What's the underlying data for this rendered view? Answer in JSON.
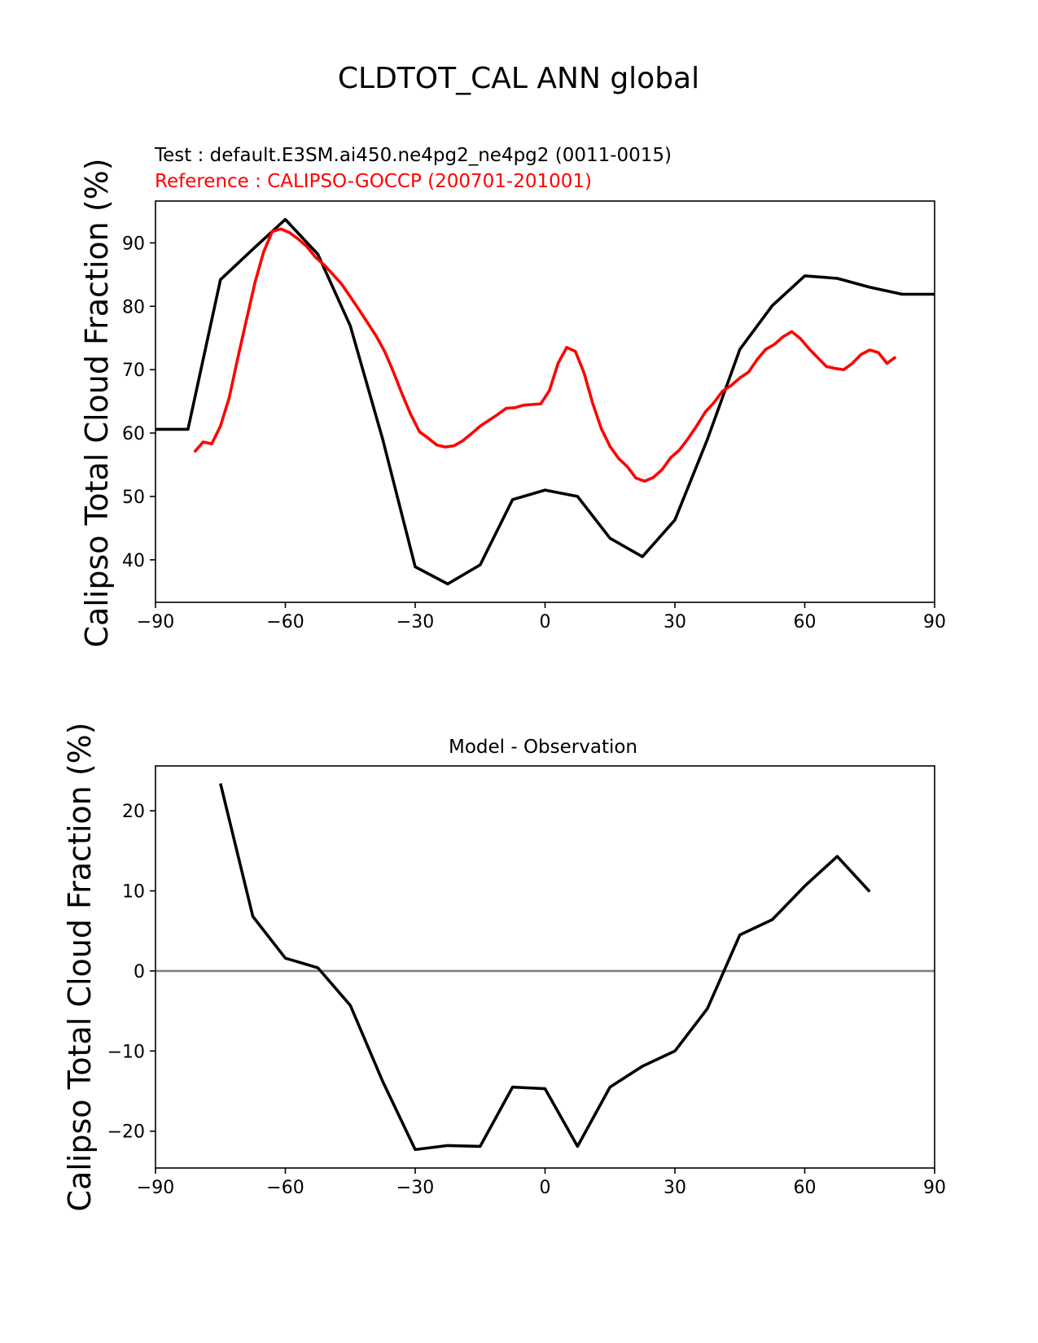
{
  "figure": {
    "title": "CLDTOT_CAL ANN global"
  },
  "colors": {
    "test": "#000000",
    "reference": "#ff0000",
    "zero_line": "#808080"
  },
  "chart_data": [
    {
      "type": "line",
      "test_label": "Test : default.E3SM.ai450.ne4pg2_ne4pg2 (0011-0015)",
      "reference_label": "Reference : CALIPSO-GOCCP (200701-201001)",
      "xlabel": "",
      "ylabel": "Calipso Total Cloud Fraction (%)",
      "xlim": [
        -90,
        90
      ],
      "ylim": [
        33.3,
        96.6
      ],
      "xticks": [
        -90,
        -60,
        -30,
        0,
        30,
        60,
        90
      ],
      "xtick_labels": [
        "−90",
        "−60",
        "−30",
        "0",
        "30",
        "60",
        "90"
      ],
      "yticks": [
        40,
        50,
        60,
        70,
        80,
        90
      ],
      "ytick_labels": [
        "40",
        "50",
        "60",
        "70",
        "80",
        "90"
      ],
      "series": [
        {
          "name": "test",
          "x": [
            -90,
            -82.5,
            -75,
            -67.5,
            -60,
            -52.5,
            -45,
            -37.5,
            -30,
            -22.5,
            -15,
            -7.5,
            0,
            7.5,
            15,
            22.5,
            30,
            37.5,
            45,
            52.5,
            60,
            67.5,
            75,
            82.5,
            90
          ],
          "y": [
            60.6,
            60.6,
            84.2,
            89.0,
            93.7,
            88.2,
            76.9,
            59.0,
            38.9,
            36.2,
            39.2,
            49.5,
            51.0,
            50.0,
            43.4,
            40.5,
            46.3,
            59.0,
            73.2,
            80.1,
            84.8,
            84.4,
            83.0,
            81.9,
            81.9
          ]
        },
        {
          "name": "reference",
          "x": [
            -81,
            -79,
            -77,
            -75,
            -73,
            -71,
            -69,
            -67,
            -65,
            -63,
            -61,
            -59,
            -57,
            -55,
            -53,
            -51,
            -49,
            -47,
            -45,
            -43,
            -41,
            -39,
            -37,
            -35,
            -33,
            -31,
            -29,
            -27,
            -25,
            -23,
            -21,
            -19,
            -17,
            -15,
            -13,
            -11,
            -9,
            -7,
            -5,
            -3,
            -1,
            1,
            3,
            5,
            7,
            9,
            11,
            13,
            15,
            17,
            19,
            21,
            23,
            25,
            27,
            29,
            31,
            33,
            35,
            37,
            39,
            41,
            43,
            45,
            47,
            49,
            51,
            53,
            55,
            57,
            59,
            61,
            63,
            65,
            67,
            69,
            71,
            73,
            75,
            77,
            79,
            81
          ],
          "y": [
            57.0,
            58.6,
            58.3,
            61.1,
            65.5,
            71.8,
            77.8,
            83.8,
            88.6,
            91.8,
            92.2,
            91.6,
            90.6,
            89.4,
            87.7,
            86.5,
            85.0,
            83.5,
            81.5,
            79.5,
            77.4,
            75.3,
            72.8,
            69.6,
            66.1,
            62.9,
            60.2,
            59.2,
            58.1,
            57.8,
            58.0,
            58.8,
            59.9,
            61.1,
            62.0,
            62.9,
            63.9,
            64.0,
            64.4,
            64.5,
            64.6,
            66.7,
            71.0,
            73.5,
            72.9,
            69.5,
            64.7,
            60.7,
            57.9,
            56.0,
            54.7,
            52.9,
            52.4,
            53.0,
            54.2,
            56.1,
            57.3,
            59.1,
            61.1,
            63.3,
            64.8,
            66.6,
            67.5,
            68.7,
            69.6,
            71.6,
            73.2,
            74.0,
            75.2,
            76.0,
            74.9,
            73.3,
            71.9,
            70.5,
            70.2,
            70.0,
            71.0,
            72.4,
            73.1,
            72.7,
            71.0,
            72.0
          ]
        }
      ]
    },
    {
      "type": "line",
      "title": "Model - Observation",
      "xlabel": "",
      "ylabel": "Calipso Total Cloud Fraction (%)",
      "xlim": [
        -90,
        90
      ],
      "ylim": [
        -24.6,
        25.6
      ],
      "xticks": [
        -90,
        -60,
        -30,
        0,
        30,
        60,
        90
      ],
      "xtick_labels": [
        "−90",
        "−60",
        "−30",
        "0",
        "30",
        "60",
        "90"
      ],
      "yticks": [
        -20,
        -10,
        0,
        10,
        20
      ],
      "ytick_labels": [
        "−20",
        "−10",
        "0",
        "10",
        "20"
      ],
      "zero_line": 0,
      "series": [
        {
          "name": "difference",
          "x": [
            -75,
            -67.5,
            -60,
            -52.5,
            -45,
            -37.5,
            -30,
            -22.5,
            -15,
            -7.5,
            0,
            7.5,
            15,
            22.5,
            30,
            37.5,
            45,
            52.5,
            60,
            67.5,
            75
          ],
          "y": [
            23.4,
            6.8,
            1.6,
            0.4,
            -4.3,
            -13.8,
            -22.3,
            -21.8,
            -21.9,
            -14.5,
            -14.7,
            -21.9,
            -14.5,
            -11.9,
            -10.0,
            -4.7,
            4.5,
            6.4,
            10.6,
            14.3,
            9.9
          ]
        }
      ]
    }
  ]
}
